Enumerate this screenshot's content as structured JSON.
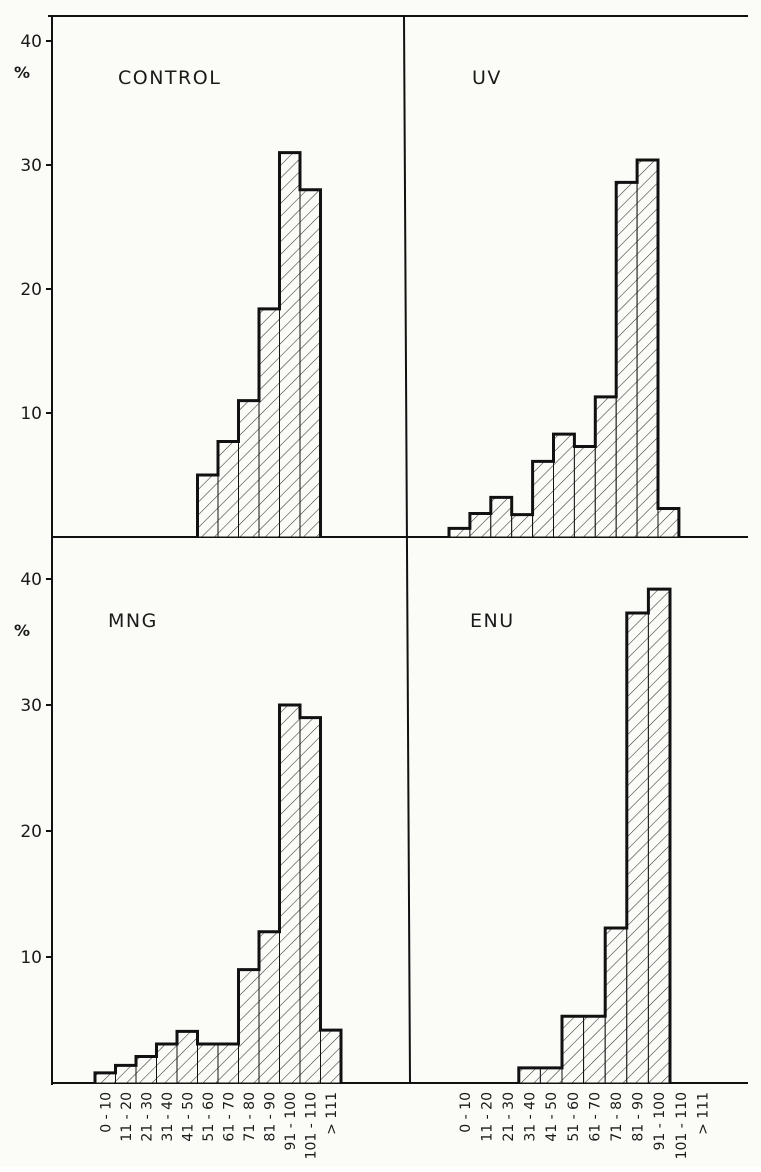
{
  "chart_data": [
    {
      "type": "bar",
      "title": "CONTROL",
      "ylabel": "%",
      "ylim": [
        0,
        40
      ],
      "yticks": [
        10,
        20,
        30,
        40
      ],
      "categories": [
        "0 - 10",
        "11 - 20",
        "21 - 30",
        "31 - 40",
        "41 - 50",
        "51 - 60",
        "61 - 70",
        "71 - 80",
        "81 - 90",
        "91 - 100",
        "101 - 110",
        "> 111"
      ],
      "values": [
        0,
        0,
        0,
        0,
        0,
        5,
        7.7,
        11,
        18.4,
        31,
        28,
        0
      ]
    },
    {
      "type": "bar",
      "title": "UV",
      "ylabel": "",
      "ylim": [
        0,
        40
      ],
      "yticks": [],
      "categories": [
        "0 - 10",
        "11 - 20",
        "21 - 30",
        "31 - 40",
        "41 - 50",
        "51 - 60",
        "61 - 70",
        "71 - 80",
        "81 - 90",
        "91 - 100",
        "101 - 110",
        "> 111"
      ],
      "values": [
        0.7,
        1.9,
        3.2,
        1.8,
        6.1,
        8.3,
        7.3,
        11.3,
        28.6,
        30.4,
        2.3,
        0
      ]
    },
    {
      "type": "bar",
      "title": "MNG",
      "ylabel": "%",
      "ylim": [
        0,
        40
      ],
      "yticks": [
        10,
        20,
        30,
        40
      ],
      "categories": [
        "0 - 10",
        "11 - 20",
        "21 - 30",
        "31 - 40",
        "41 - 50",
        "51 - 60",
        "61 - 70",
        "71 - 80",
        "81 - 90",
        "91 - 100",
        "101 - 110",
        "> 111"
      ],
      "values": [
        0.8,
        1.4,
        2.1,
        3.1,
        4.1,
        3.1,
        3.1,
        9,
        12,
        30,
        29,
        4.2
      ]
    },
    {
      "type": "bar",
      "title": "ENU",
      "ylabel": "",
      "ylim": [
        0,
        40
      ],
      "yticks": [],
      "categories": [
        "0 - 10",
        "11 - 20",
        "21 - 30",
        "31 - 40",
        "41 - 50",
        "51 - 60",
        "61 - 70",
        "71 - 80",
        "81 - 90",
        "91 - 100",
        "101 - 110",
        "> 111"
      ],
      "values": [
        0,
        0,
        0,
        1.2,
        1.2,
        5.3,
        5.3,
        12.3,
        37.3,
        39.2,
        0,
        0
      ]
    }
  ]
}
